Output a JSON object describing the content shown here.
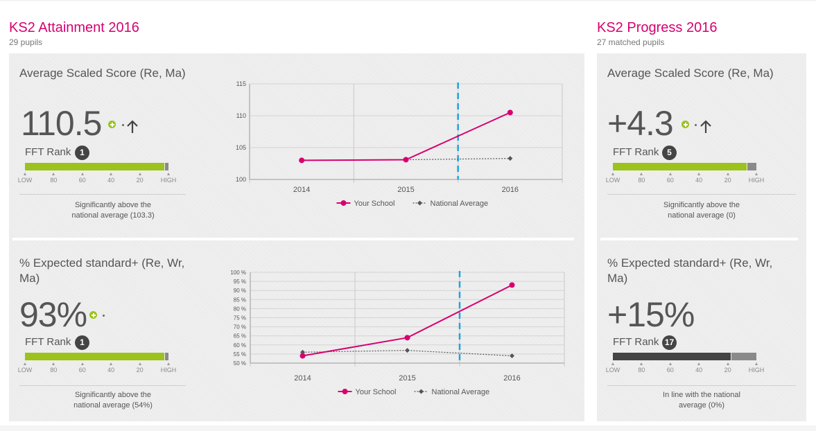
{
  "attainment": {
    "title": "KS2 Attainment 2016",
    "subtitle": "29 pupils",
    "tiles": [
      {
        "title": "Average Scaled Score (Re, Ma)",
        "value": "110.5",
        "rank_label": "FFT Rank",
        "rank": "1",
        "rank_fill_fraction": 0.97,
        "caption_line1": "Significantly above the",
        "caption_line2": "national average (103.3)"
      },
      {
        "title": "% Expected standard+ (Re, Wr, Ma)",
        "value": "93%",
        "rank_label": "FFT Rank",
        "rank": "1",
        "rank_fill_fraction": 0.97,
        "caption_line1": "Significantly above the",
        "caption_line2": "national average (54%)"
      }
    ]
  },
  "progress": {
    "title": "KS2 Progress 2016",
    "subtitle": "27 matched pupils",
    "tiles": [
      {
        "title": "Average Scaled Score (Re, Ma)",
        "value": "+4.3",
        "rank_label": "FFT Rank",
        "rank": "5",
        "rank_fill_fraction": 0.93,
        "caption_line1": "Significantly above the",
        "caption_line2": "national average (0)"
      },
      {
        "title": "% Expected standard+ (Re, Wr, Ma)",
        "value": "+15%",
        "rank_label": "FFT Rank",
        "rank": "17",
        "rank_fill_fraction": 0.82,
        "caption_line1": "In line with the national",
        "caption_line2": "average (0%)"
      }
    ]
  },
  "rank_scale": [
    "LOW",
    "80",
    "60",
    "40",
    "20",
    "HIGH"
  ],
  "colors": {
    "accent": "#d6006f",
    "green": "#9bc31c",
    "dark_fill": "#444444",
    "grey_rest": "#8a8a8a",
    "dashed_marker": "#1fa3df",
    "national": "#555555"
  },
  "chart_data": [
    {
      "type": "line",
      "categories": [
        "2014",
        "2015",
        "2016"
      ],
      "ylim": [
        100,
        115
      ],
      "yticks": [
        "100",
        "105",
        "110",
        "115"
      ],
      "marker_between": [
        "2015",
        "2016"
      ],
      "series": [
        {
          "name": "Your School",
          "values": [
            103.0,
            103.1,
            110.5
          ]
        },
        {
          "name": "National Average",
          "values": [
            103.0,
            103.1,
            103.3
          ]
        }
      ]
    },
    {
      "type": "line",
      "categories": [
        "2014",
        "2015",
        "2016"
      ],
      "ylim": [
        50,
        100
      ],
      "yticks": [
        "50 %",
        "55 %",
        "60 %",
        "65 %",
        "70 %",
        "75 %",
        "80 %",
        "85 %",
        "90 %",
        "95 %",
        "100 %"
      ],
      "marker_between": [
        "2015",
        "2016"
      ],
      "series": [
        {
          "name": "Your School",
          "values": [
            54,
            64,
            93
          ]
        },
        {
          "name": "National Average",
          "values": [
            56,
            57,
            54
          ]
        }
      ]
    }
  ]
}
